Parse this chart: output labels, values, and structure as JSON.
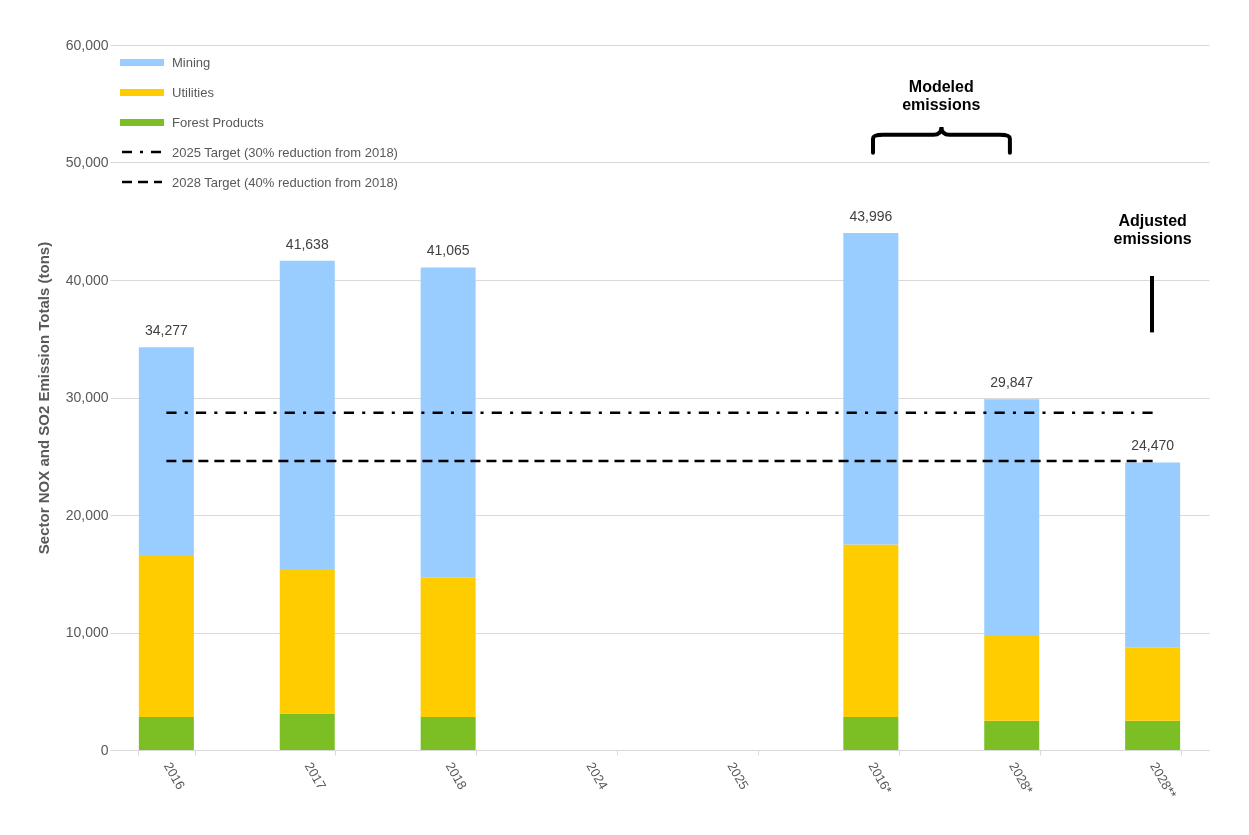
{
  "chart_data": {
    "type": "bar",
    "stacked": true,
    "ylabel": "Sector NOX and SO2 Emission Totals (tons)",
    "categories": [
      "2016",
      "2017",
      "2018",
      "2024",
      "2025",
      "2016*",
      "2028*",
      "2028**"
    ],
    "series": [
      {
        "name": "Forest Products",
        "color": "#7bbf24",
        "values": [
          2800,
          3100,
          2800,
          null,
          null,
          2800,
          2500,
          2500
        ]
      },
      {
        "name": "Utilities",
        "color": "#ffcc00",
        "values": [
          13800,
          12300,
          11900,
          null,
          null,
          14700,
          7200,
          6200
        ]
      },
      {
        "name": "Mining",
        "color": "#99ccff",
        "values": [
          17677,
          26238,
          26365,
          null,
          null,
          26496,
          20147,
          15770
        ]
      },
      {
        "name": "2025 Target (30% reduction from 2018)",
        "type": "line",
        "line_style": "dotted",
        "color": "#000000",
        "values": [
          28700,
          28700,
          28700,
          28700,
          28700,
          28700,
          28700,
          28700
        ]
      },
      {
        "name": "2028 Target (40% reduction from 2018)",
        "type": "line",
        "line_style": "dashed",
        "color": "#000000",
        "values": [
          24600,
          24600,
          24600,
          24600,
          24600,
          24600,
          24600,
          24600
        ]
      }
    ],
    "totals": [
      "34,277",
      "41,638",
      "41,065",
      null,
      null,
      "43,996",
      "29,847",
      "24,470"
    ],
    "ylim": [
      0,
      60000
    ],
    "yticks": [
      0,
      {
        "value": 10000,
        "label": "10,000"
      },
      {
        "value": 20000,
        "label": "20,000"
      },
      {
        "value": 30000,
        "label": "30,000"
      },
      {
        "value": 40000,
        "label": "40,000"
      },
      {
        "value": 50000,
        "label": "50,000"
      },
      {
        "value": 60000,
        "label": "60,000"
      }
    ],
    "grid": "y",
    "legend": "top left",
    "annotations": [
      "Modeled emissions",
      "Adjusted emissions"
    ]
  }
}
